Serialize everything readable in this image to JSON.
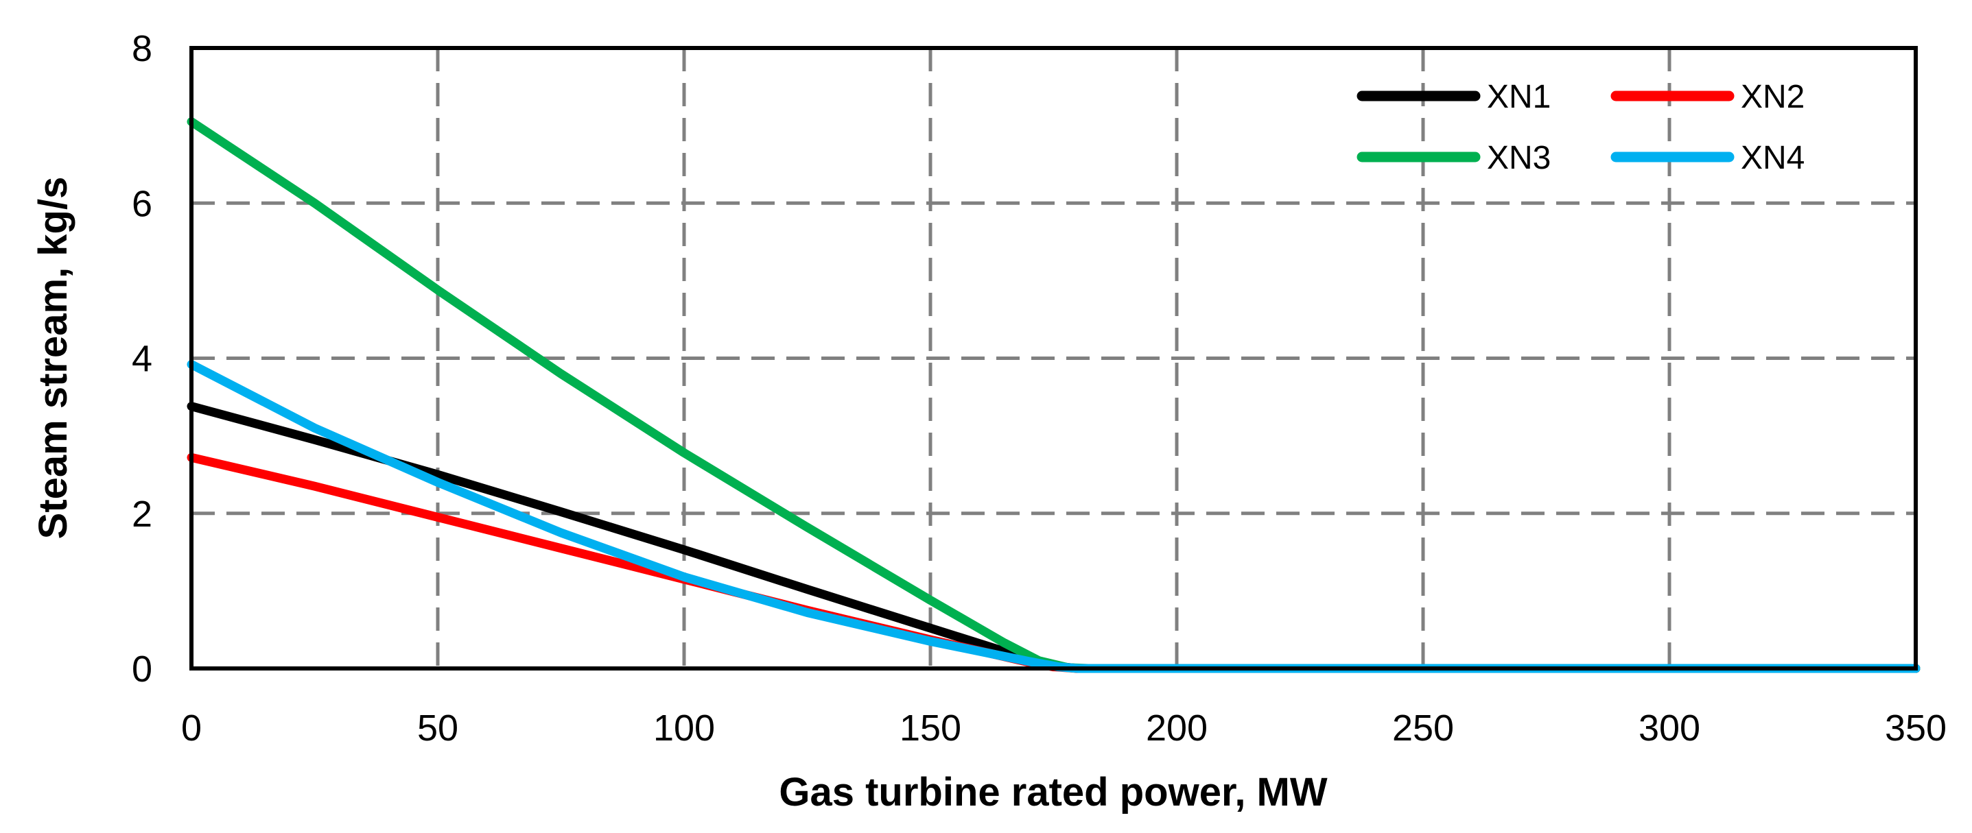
{
  "chart_data": {
    "type": "line",
    "title": "",
    "xlabel": "Gas turbine rated power, MW",
    "ylabel": "Steam stream, kg/s",
    "xlim": [
      0,
      350
    ],
    "ylim": [
      0,
      8
    ],
    "xticks": [
      0,
      50,
      100,
      150,
      200,
      250,
      300,
      350
    ],
    "yticks": [
      0,
      2,
      4,
      6,
      8
    ],
    "xtick_labels": [
      "0",
      "50",
      "100",
      "150",
      "200",
      "250",
      "300",
      "350"
    ],
    "ytick_labels": [
      "0",
      "2",
      "4",
      "6",
      "8"
    ],
    "grid": true,
    "legend_position": "top-right",
    "series": [
      {
        "name": "XN1",
        "color": "#000000",
        "x": [
          0,
          25,
          50,
          75,
          100,
          125,
          150,
          170,
          175,
          180,
          200,
          250,
          300,
          350
        ],
        "y": [
          3.38,
          2.95,
          2.5,
          2.02,
          1.53,
          1.02,
          0.52,
          0.12,
          0.03,
          0.0,
          0.0,
          0.0,
          0.0,
          0.0
        ]
      },
      {
        "name": "XN2",
        "color": "#ff0000",
        "x": [
          0,
          25,
          50,
          75,
          100,
          125,
          150,
          170,
          175,
          180,
          200,
          250,
          300,
          350
        ],
        "y": [
          2.72,
          2.35,
          1.95,
          1.55,
          1.15,
          0.75,
          0.37,
          0.08,
          0.02,
          0.0,
          0.0,
          0.0,
          0.0,
          0.0
        ]
      },
      {
        "name": "XN3",
        "color": "#00b050",
        "x": [
          0,
          25,
          50,
          75,
          100,
          125,
          150,
          165,
          172,
          178,
          182,
          200,
          250,
          300,
          350
        ],
        "y": [
          7.05,
          6.0,
          4.88,
          3.8,
          2.78,
          1.82,
          0.88,
          0.33,
          0.1,
          0.01,
          0.0,
          0.0,
          0.0,
          0.0,
          0.0
        ]
      },
      {
        "name": "XN4",
        "color": "#00b0f0",
        "x": [
          0,
          25,
          50,
          75,
          100,
          125,
          150,
          170,
          176,
          180,
          200,
          250,
          300,
          350
        ],
        "y": [
          3.92,
          3.1,
          2.4,
          1.75,
          1.18,
          0.72,
          0.35,
          0.09,
          0.02,
          0.0,
          0.0,
          0.0,
          0.0,
          0.0
        ]
      }
    ]
  }
}
